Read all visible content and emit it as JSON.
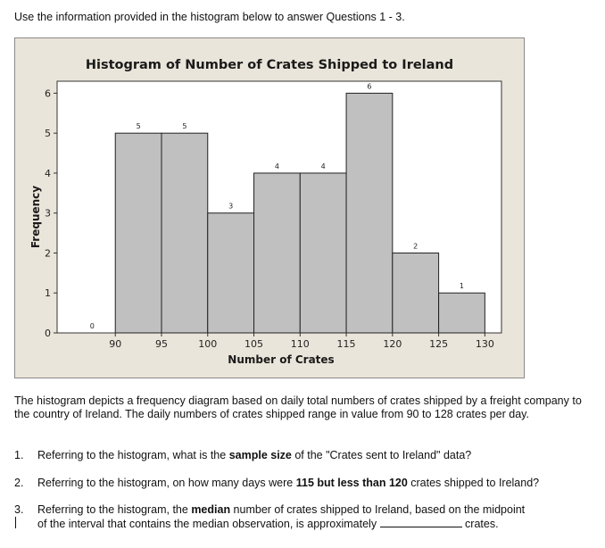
{
  "intro": "Use the information provided in the histogram below to answer Questions 1 - 3.",
  "chart_data": {
    "type": "bar",
    "title": "Histogram of Number of Crates Shipped to Ireland",
    "xlabel": "Number of Crates",
    "ylabel": "Frequency",
    "bins": [
      [
        85,
        90
      ],
      [
        90,
        95
      ],
      [
        95,
        100
      ],
      [
        100,
        105
      ],
      [
        105,
        110
      ],
      [
        110,
        115
      ],
      [
        115,
        120
      ],
      [
        120,
        125
      ],
      [
        125,
        130
      ]
    ],
    "values": [
      0,
      5,
      5,
      3,
      4,
      4,
      6,
      2,
      1
    ],
    "data_labels": [
      "0",
      "5",
      "5",
      "3",
      "4",
      "4",
      "6",
      "2",
      "1"
    ],
    "xticks": [
      "90",
      "95",
      "100",
      "105",
      "110",
      "115",
      "120",
      "125",
      "130"
    ],
    "yticks": [
      "0",
      "1",
      "2",
      "3",
      "4",
      "5",
      "6"
    ],
    "xlim": [
      83.7,
      131.8
    ],
    "ylim": [
      0,
      6.3
    ],
    "grid": false,
    "bar_color": "#c0c0c0",
    "frame_bg": "#eae5da"
  },
  "description": "The histogram depicts a frequency diagram based on daily total numbers of crates shipped by a freight company to the country of Ireland.  The daily numbers of crates shipped range in value from 90 to 128 crates per day.",
  "questions": [
    {
      "number": "1.",
      "before": "Referring to the histogram, what is the ",
      "bold": "sample size",
      "after": " of the \"Crates sent to Ireland\" data?"
    },
    {
      "number": "2.",
      "before": "Referring to the histogram, on how many days were ",
      "bold": "115 but less than 120",
      "after": " crates shipped to Ireland?"
    },
    {
      "number": "3.",
      "before": "Referring to the histogram, the ",
      "bold": "median",
      "after": " number of crates shipped to Ireland, based on the midpoint",
      "line2": "of the interval that contains the median observation, is approximately",
      "unit": "crates."
    }
  ]
}
